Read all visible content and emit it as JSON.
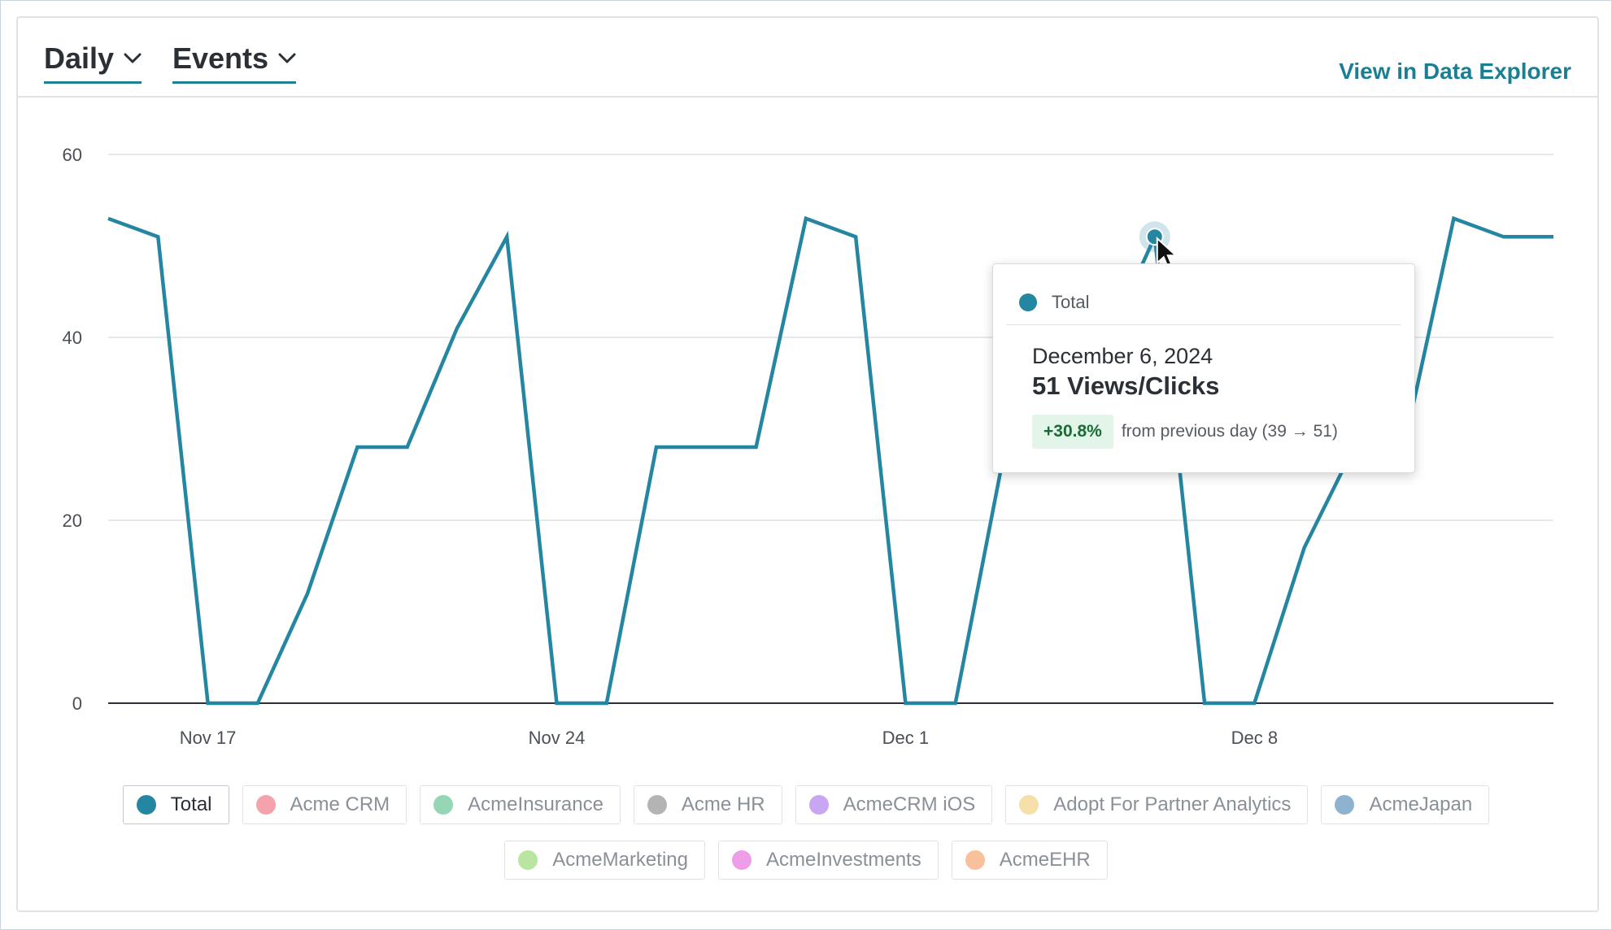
{
  "header": {
    "interval_label": "Daily",
    "metric_label": "Events",
    "explore_link": "View in Data Explorer"
  },
  "colors": {
    "accent": "#1a7f93",
    "line": "#2586a2"
  },
  "chart_data": {
    "type": "line",
    "x": [
      "Nov 15",
      "Nov 16",
      "Nov 17",
      "Nov 18",
      "Nov 19",
      "Nov 20",
      "Nov 21",
      "Nov 22",
      "Nov 23",
      "Nov 24",
      "Nov 25",
      "Nov 26",
      "Nov 27",
      "Nov 28",
      "Nov 29",
      "Nov 30",
      "Dec 1",
      "Dec 2",
      "Dec 3",
      "Dec 4",
      "Dec 5",
      "Dec 6",
      "Dec 7",
      "Dec 8",
      "Dec 9",
      "Dec 10",
      "Dec 11",
      "Dec 12",
      "Dec 13",
      "Dec 14"
    ],
    "xticks": [
      {
        "label": "Nov 17",
        "index": 2
      },
      {
        "label": "Nov 24",
        "index": 9
      },
      {
        "label": "Dec 1",
        "index": 16
      },
      {
        "label": "Dec 8",
        "index": 23
      }
    ],
    "series": [
      {
        "name": "Total",
        "color": "#2586a2",
        "values": [
          53,
          51,
          0,
          0,
          12,
          28,
          28,
          41,
          51,
          0,
          0,
          28,
          28,
          28,
          53,
          51,
          0,
          0,
          28,
          28,
          39,
          51,
          0,
          0,
          17,
          28,
          28,
          53,
          51,
          51
        ]
      }
    ],
    "yticks": [
      0,
      20,
      40,
      60
    ],
    "ylim": [
      0,
      60
    ],
    "grid": true,
    "highlight_index": 21
  },
  "tooltip": {
    "series_name": "Total",
    "date": "December 6, 2024",
    "value": "51 Views/Clicks",
    "change_pct": "+30.8%",
    "change_text": "from previous day (39 → 51)"
  },
  "legend": {
    "row1": [
      {
        "label": "Total",
        "color": "#2586a2",
        "active": true
      },
      {
        "label": "Acme CRM",
        "color": "#f4a3ad",
        "active": false
      },
      {
        "label": "AcmeInsurance",
        "color": "#95d7b4",
        "active": false
      },
      {
        "label": "Acme HR",
        "color": "#b4b4b4",
        "active": false
      },
      {
        "label": "AcmeCRM iOS",
        "color": "#c9a6f2",
        "active": false
      },
      {
        "label": "Adopt For Partner Analytics",
        "color": "#f6dfa8",
        "active": false
      },
      {
        "label": "AcmeJapan",
        "color": "#8fb3cf",
        "active": false
      }
    ],
    "row2": [
      {
        "label": "AcmeMarketing",
        "color": "#b9e5a0",
        "active": false
      },
      {
        "label": "AcmeInvestments",
        "color": "#ee9de8",
        "active": false
      },
      {
        "label": "AcmeEHR",
        "color": "#f8c09b",
        "active": false
      }
    ]
  }
}
